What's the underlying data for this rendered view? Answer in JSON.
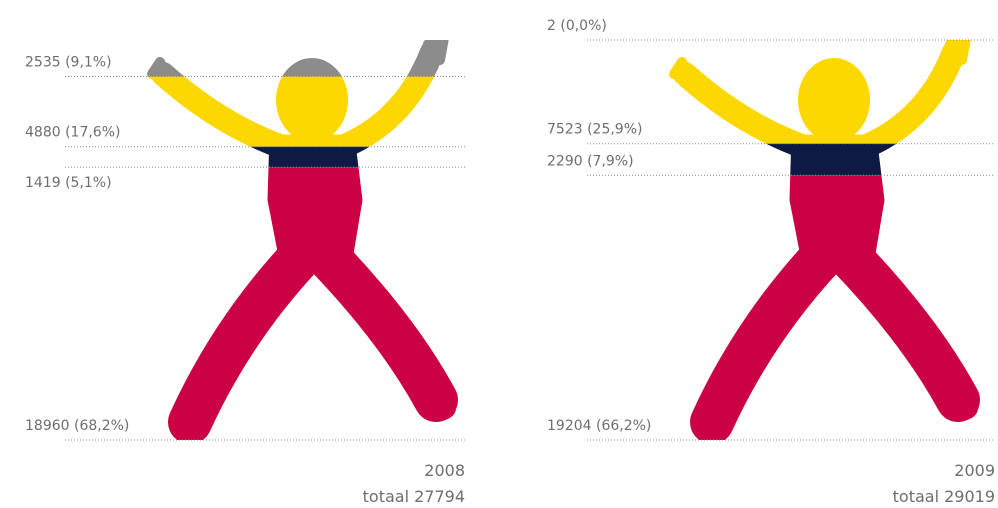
{
  "chart_data": [
    {
      "type": "pictogram",
      "title": "2008",
      "subtitle": "totaal 27794",
      "series": [
        {
          "color": "#8c8c8c",
          "values": [
            2535
          ],
          "value_labels": [
            "2535 (9,1%)"
          ]
        },
        {
          "color": "#fdd800",
          "values": [
            4880
          ],
          "value_labels": [
            "4880 (17,6%)"
          ]
        },
        {
          "color": "#0c1a44",
          "values": [
            1419
          ],
          "value_labels": [
            "1419 (5,1%)"
          ]
        },
        {
          "color": "#cc0044",
          "values": [
            18960
          ],
          "value_labels": [
            "18960 (68,2%)"
          ]
        }
      ]
    },
    {
      "type": "pictogram",
      "title": "2009",
      "subtitle": "totaal 29019",
      "series": [
        {
          "color": "#8c8c8c",
          "values": [
            2
          ],
          "value_labels": [
            "2 (0,0%)"
          ]
        },
        {
          "color": "#fdd800",
          "values": [
            7523
          ],
          "value_labels": [
            "7523 (25,9%)"
          ]
        },
        {
          "color": "#0c1a44",
          "values": [
            2290
          ],
          "value_labels": [
            "2290 (7,9%)"
          ]
        },
        {
          "color": "#cc0044",
          "values": [
            19204
          ],
          "value_labels": [
            "19204 (66,2%)"
          ]
        }
      ]
    }
  ]
}
